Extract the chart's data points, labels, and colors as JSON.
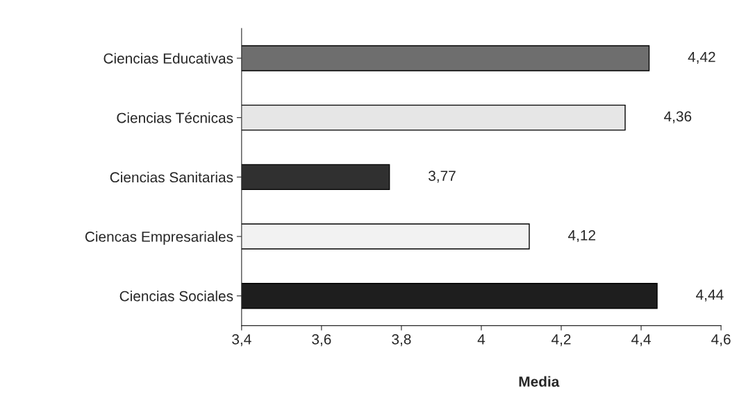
{
  "chart_data": {
    "type": "bar",
    "orientation": "horizontal",
    "categories": [
      "Ciencias Educativas",
      "Ciencias Técnicas",
      "Ciencias Sanitarias",
      "Ciencas Empresariales",
      "Ciencias Sociales"
    ],
    "values": [
      4.42,
      4.36,
      3.77,
      4.12,
      4.44
    ],
    "value_labels": [
      "4,42",
      "4,36",
      "3,77",
      "4,12",
      "4,44"
    ],
    "colors": [
      "#6e6e6e",
      "#e6e6e6",
      "#303030",
      "#f2f2f2",
      "#1e1e1e"
    ],
    "xlabel": "Media",
    "xlim": [
      3.4,
      4.6
    ],
    "xticks": [
      {
        "value": 3.4,
        "label": "3,4"
      },
      {
        "value": 3.6,
        "label": "3,6"
      },
      {
        "value": 3.8,
        "label": "3,8"
      },
      4,
      {
        "value": 4.2,
        "label": "4,2"
      },
      {
        "value": 4.4,
        "label": "4,4"
      },
      {
        "value": 4.6,
        "label": "4,6"
      }
    ],
    "grid": false,
    "legend": false
  }
}
